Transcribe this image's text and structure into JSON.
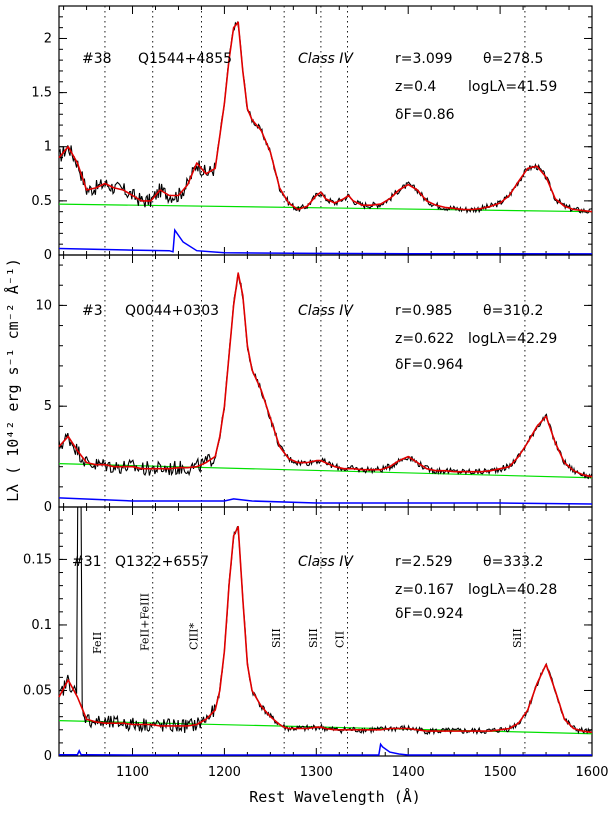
{
  "colors": {
    "data": "#000000",
    "fit": "#e00000",
    "continuum": "#00e000",
    "error": "#0000ff"
  },
  "xlabel": "Rest Wavelength (Å)",
  "ylabel": "Lλ ( 10⁴² erg s⁻¹ cm⁻² Å⁻¹)",
  "chart_data": [
    {
      "type": "line",
      "id": "#38",
      "name": "Q1544+4855",
      "class": "Class IV",
      "r": "r=3.099",
      "theta": "θ=278.5",
      "z": "z=0.4",
      "logL": "logLλ=41.59",
      "dF": "δF=0.86",
      "xlim": [
        1020,
        1600
      ],
      "ylim": [
        0,
        2.3
      ],
      "xticks": [
        1100,
        1200,
        1300,
        1400,
        1500,
        1600
      ],
      "yticks": [
        0,
        0.5,
        1,
        1.5,
        2
      ],
      "yticklabels": [
        "0",
        "0.5",
        "1",
        "1.5",
        "2"
      ],
      "continuum": [
        [
          1020,
          0.47
        ],
        [
          1600,
          0.4
        ]
      ],
      "x": [
        1020,
        1030,
        1040,
        1050,
        1060,
        1070,
        1080,
        1090,
        1100,
        1110,
        1120,
        1130,
        1140,
        1150,
        1160,
        1170,
        1180,
        1190,
        1195,
        1200,
        1205,
        1210,
        1215,
        1220,
        1225,
        1230,
        1240,
        1250,
        1260,
        1265,
        1270,
        1280,
        1290,
        1300,
        1305,
        1310,
        1320,
        1330,
        1335,
        1340,
        1350,
        1360,
        1370,
        1380,
        1390,
        1400,
        1410,
        1420,
        1430,
        1440,
        1450,
        1460,
        1470,
        1480,
        1490,
        1500,
        1510,
        1520,
        1530,
        1540,
        1550,
        1560,
        1570,
        1580,
        1590,
        1600
      ],
      "fit": [
        0.9,
        1.0,
        0.85,
        0.6,
        0.62,
        0.66,
        0.62,
        0.6,
        0.55,
        0.5,
        0.5,
        0.6,
        0.55,
        0.55,
        0.65,
        0.85,
        0.75,
        0.8,
        1.1,
        1.4,
        1.8,
        2.1,
        2.15,
        1.7,
        1.35,
        1.25,
        1.15,
        0.95,
        0.62,
        0.55,
        0.48,
        0.42,
        0.45,
        0.55,
        0.58,
        0.52,
        0.48,
        0.52,
        0.55,
        0.5,
        0.46,
        0.46,
        0.47,
        0.52,
        0.6,
        0.65,
        0.6,
        0.5,
        0.46,
        0.44,
        0.43,
        0.42,
        0.42,
        0.43,
        0.45,
        0.48,
        0.55,
        0.68,
        0.8,
        0.82,
        0.72,
        0.52,
        0.45,
        0.42,
        0.41,
        0.4
      ],
      "error_x": [
        1020,
        1100,
        1140,
        1144,
        1146,
        1155,
        1170,
        1200,
        1300,
        1400,
        1500,
        1600
      ],
      "error_y": [
        0.06,
        0.045,
        0.04,
        0.03,
        0.23,
        0.12,
        0.04,
        0.02,
        0.015,
        0.012,
        0.012,
        0.01
      ]
    },
    {
      "type": "line",
      "id": "#3",
      "name": "Q0044+0303",
      "class": "Class IV",
      "r": "r=0.985",
      "theta": "θ=310.2",
      "z": "z=0.622",
      "logL": "logLλ=42.29",
      "dF": "δF=0.964",
      "xlim": [
        1020,
        1600
      ],
      "ylim": [
        0,
        12.5
      ],
      "xticks": [
        1100,
        1200,
        1300,
        1400,
        1500,
        1600
      ],
      "yticks": [
        0,
        5,
        10
      ],
      "yticklabels": [
        "0",
        "5",
        "10"
      ],
      "continuum": [
        [
          1020,
          2.15
        ],
        [
          1600,
          1.45
        ]
      ],
      "x": [
        1020,
        1030,
        1040,
        1050,
        1060,
        1070,
        1080,
        1090,
        1100,
        1110,
        1120,
        1130,
        1140,
        1150,
        1160,
        1170,
        1180,
        1190,
        1195,
        1200,
        1205,
        1210,
        1215,
        1220,
        1225,
        1230,
        1240,
        1250,
        1260,
        1265,
        1270,
        1280,
        1290,
        1300,
        1305,
        1310,
        1320,
        1330,
        1335,
        1340,
        1350,
        1360,
        1370,
        1380,
        1390,
        1400,
        1410,
        1420,
        1430,
        1440,
        1450,
        1460,
        1470,
        1480,
        1490,
        1500,
        1510,
        1520,
        1530,
        1540,
        1550,
        1560,
        1570,
        1580,
        1590,
        1600
      ],
      "fit": [
        3.0,
        3.5,
        2.8,
        2.2,
        2.1,
        2.1,
        2.0,
        2.0,
        2.0,
        1.9,
        1.9,
        1.9,
        1.9,
        1.95,
        1.95,
        2.0,
        2.2,
        2.5,
        3.5,
        5.0,
        7.5,
        10.0,
        11.6,
        10.5,
        8.0,
        6.8,
        5.8,
        4.4,
        3.0,
        2.7,
        2.4,
        2.2,
        2.2,
        2.3,
        2.3,
        2.2,
        2.0,
        1.9,
        1.9,
        1.9,
        1.85,
        1.85,
        1.85,
        2.0,
        2.3,
        2.5,
        2.2,
        1.9,
        1.8,
        1.8,
        1.75,
        1.75,
        1.75,
        1.75,
        1.8,
        1.9,
        2.0,
        2.5,
        3.2,
        4.0,
        4.5,
        3.2,
        2.2,
        1.8,
        1.6,
        1.5
      ],
      "error_x": [
        1020,
        1100,
        1200,
        1210,
        1230,
        1300,
        1400,
        1500,
        1600
      ],
      "error_y": [
        0.45,
        0.3,
        0.3,
        0.4,
        0.3,
        0.2,
        0.2,
        0.2,
        0.15
      ]
    },
    {
      "type": "line",
      "id": "#31",
      "name": "Q1322+6557",
      "class": "Class IV",
      "r": "r=2.529",
      "theta": "θ=333.2",
      "z": "z=0.167",
      "logL": "logLλ=40.28",
      "dF": "δF=0.924",
      "xlim": [
        1020,
        1600
      ],
      "ylim": [
        0,
        0.19
      ],
      "xticks": [
        1100,
        1200,
        1300,
        1400,
        1500,
        1600
      ],
      "xticklabels": [
        "1100",
        "1200",
        "1300",
        "1400",
        "1500",
        "1600"
      ],
      "yticks": [
        0,
        0.05,
        0.1,
        0.15
      ],
      "yticklabels": [
        "0",
        "0.05",
        "0.1",
        "0.15"
      ],
      "continuum": [
        [
          1020,
          0.027
        ],
        [
          1600,
          0.017
        ]
      ],
      "x": [
        1020,
        1030,
        1040,
        1050,
        1060,
        1070,
        1080,
        1090,
        1100,
        1110,
        1120,
        1130,
        1140,
        1150,
        1160,
        1170,
        1180,
        1190,
        1195,
        1200,
        1205,
        1210,
        1215,
        1220,
        1225,
        1230,
        1240,
        1250,
        1260,
        1265,
        1270,
        1280,
        1290,
        1300,
        1305,
        1310,
        1320,
        1330,
        1335,
        1340,
        1350,
        1360,
        1370,
        1380,
        1390,
        1400,
        1410,
        1420,
        1430,
        1440,
        1450,
        1460,
        1470,
        1480,
        1490,
        1500,
        1510,
        1520,
        1530,
        1540,
        1550,
        1560,
        1570,
        1580,
        1590,
        1600
      ],
      "fit": [
        0.045,
        0.058,
        0.045,
        0.028,
        0.026,
        0.025,
        0.025,
        0.025,
        0.024,
        0.024,
        0.024,
        0.023,
        0.023,
        0.023,
        0.023,
        0.024,
        0.028,
        0.035,
        0.05,
        0.08,
        0.13,
        0.168,
        0.175,
        0.12,
        0.07,
        0.05,
        0.038,
        0.03,
        0.024,
        0.022,
        0.021,
        0.021,
        0.021,
        0.022,
        0.022,
        0.021,
        0.02,
        0.02,
        0.02,
        0.02,
        0.02,
        0.02,
        0.02,
        0.021,
        0.021,
        0.021,
        0.02,
        0.019,
        0.019,
        0.019,
        0.019,
        0.019,
        0.019,
        0.019,
        0.019,
        0.02,
        0.021,
        0.025,
        0.035,
        0.055,
        0.07,
        0.05,
        0.028,
        0.021,
        0.019,
        0.018
      ],
      "error_x": [
        1020,
        1040,
        1042,
        1044,
        1050,
        1100,
        1200,
        1300,
        1368,
        1370,
        1372,
        1380,
        1390,
        1400,
        1500,
        1600
      ],
      "error_y": [
        0.001,
        0.001,
        0.004,
        0.001,
        0.001,
        0.0008,
        0.0008,
        0.0008,
        0.0008,
        0.009,
        0.007,
        0.003,
        0.0015,
        0.0008,
        0.0008,
        0.0008
      ],
      "lines": [
        {
          "x": 1070,
          "label": "FeII"
        },
        {
          "x": 1122,
          "label": "FeII+FeIII"
        },
        {
          "x": 1175,
          "label": "CIII*"
        },
        {
          "x": 1265,
          "label": "SiII"
        },
        {
          "x": 1305,
          "label": "SiII"
        },
        {
          "x": 1334,
          "label": "CII"
        },
        {
          "x": 1527,
          "label": "SiII"
        }
      ]
    }
  ]
}
